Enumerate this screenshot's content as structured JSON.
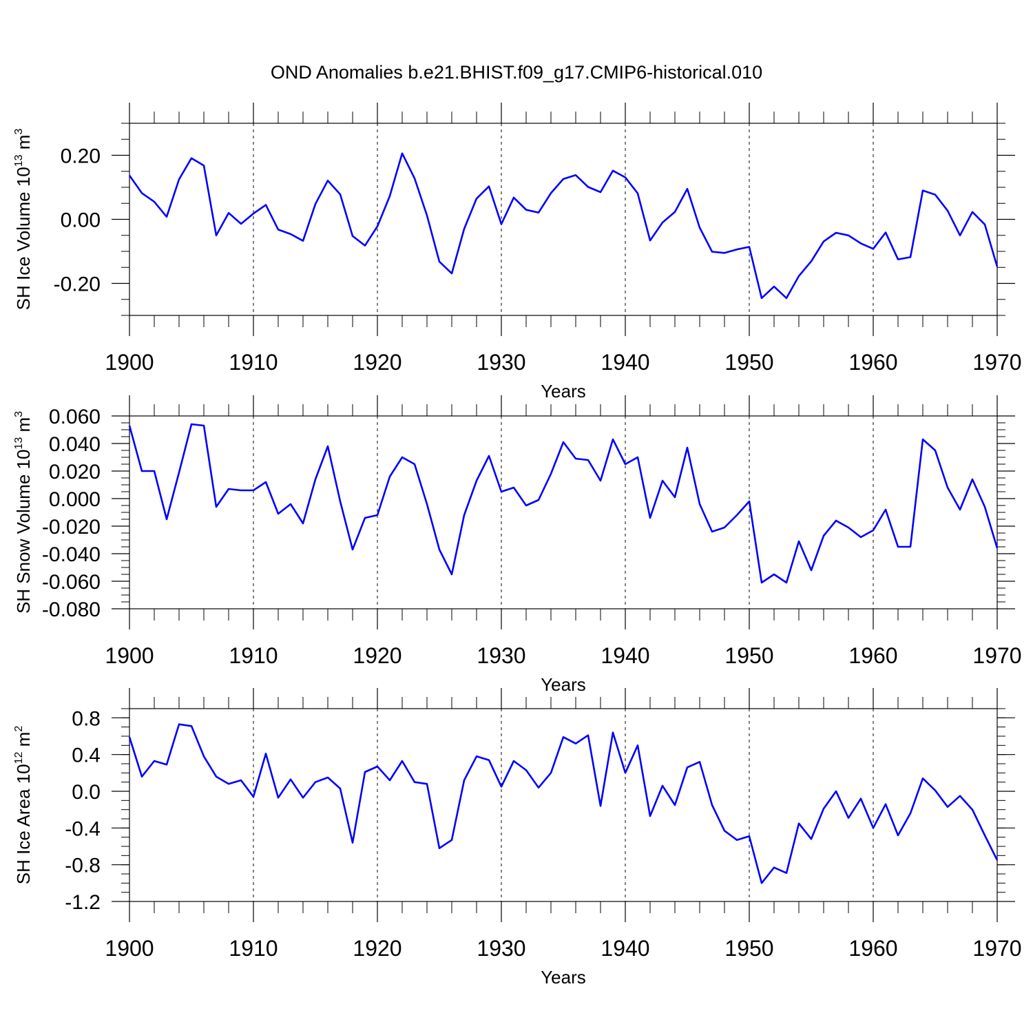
{
  "title": "OND Anomalies b.e21.BHIST.f09_g17.CMIP6-historical.010",
  "line_color": "#0000ff",
  "chart_data": [
    {
      "type": "line",
      "xlabel": "Years",
      "ylabel_main": "SH Ice Volume 10",
      "ylabel_exp": "13",
      "ylabel_unit": " m",
      "ylabel_unit_exp": "3",
      "xlim": [
        1900,
        1970
      ],
      "ylim": [
        -0.3,
        0.3
      ],
      "yticks": [
        -0.2,
        0.0,
        0.2
      ],
      "ytick_labels": [
        "-0.20",
        "0.00",
        "0.20"
      ],
      "yminor_step": 0.05,
      "xticks": [
        1900,
        1910,
        1920,
        1930,
        1940,
        1950,
        1960,
        1970
      ],
      "xtick_labels": [
        "1900",
        "1910",
        "1920",
        "1930",
        "1940",
        "1950",
        "1960",
        "1970"
      ],
      "series": [
        {
          "name": "SH Ice Volume",
          "x": [
            1900,
            1901,
            1902,
            1903,
            1904,
            1905,
            1906,
            1907,
            1908,
            1909,
            1910,
            1911,
            1912,
            1913,
            1914,
            1915,
            1916,
            1917,
            1918,
            1919,
            1920,
            1921,
            1922,
            1923,
            1924,
            1925,
            1926,
            1927,
            1928,
            1929,
            1930,
            1931,
            1932,
            1933,
            1934,
            1935,
            1936,
            1937,
            1938,
            1939,
            1940,
            1941,
            1942,
            1943,
            1944,
            1945,
            1946,
            1947,
            1948,
            1949,
            1950,
            1951,
            1952,
            1953,
            1954,
            1955,
            1956,
            1957,
            1958,
            1959,
            1960,
            1961,
            1962,
            1963,
            1964,
            1965,
            1966,
            1967,
            1968,
            1969,
            1970
          ],
          "values": [
            0.137,
            0.082,
            0.055,
            0.008,
            0.125,
            0.191,
            0.168,
            -0.05,
            0.02,
            -0.014,
            0.018,
            0.045,
            -0.032,
            -0.046,
            -0.067,
            0.048,
            0.121,
            0.078,
            -0.052,
            -0.082,
            -0.022,
            0.073,
            0.206,
            0.128,
            0.012,
            -0.132,
            -0.169,
            -0.03,
            0.065,
            0.103,
            -0.015,
            0.068,
            0.03,
            0.021,
            0.082,
            0.126,
            0.138,
            0.101,
            0.085,
            0.152,
            0.131,
            0.081,
            -0.066,
            -0.01,
            0.023,
            0.095,
            -0.026,
            -0.101,
            -0.105,
            -0.094,
            -0.086,
            -0.246,
            -0.21,
            -0.246,
            -0.177,
            -0.131,
            -0.069,
            -0.042,
            -0.05,
            -0.075,
            -0.092,
            -0.041,
            -0.125,
            -0.118,
            0.09,
            0.077,
            0.027,
            -0.05,
            0.023,
            -0.016,
            -0.148
          ]
        }
      ]
    },
    {
      "type": "line",
      "xlabel": "Years",
      "ylabel_main": "SH Snow Volume 10",
      "ylabel_exp": "13",
      "ylabel_unit": " m",
      "ylabel_unit_exp": "3",
      "xlim": [
        1900,
        1970
      ],
      "ylim": [
        -0.08,
        0.06
      ],
      "yticks": [
        -0.08,
        -0.06,
        -0.04,
        -0.02,
        0.0,
        0.02,
        0.04,
        0.06
      ],
      "ytick_labels": [
        "-0.080",
        "-0.060",
        "-0.040",
        "-0.020",
        "0.000",
        "0.020",
        "0.040",
        "0.060"
      ],
      "yminor_step": 0.005,
      "xticks": [
        1900,
        1910,
        1920,
        1930,
        1940,
        1950,
        1960,
        1970
      ],
      "xtick_labels": [
        "1900",
        "1910",
        "1920",
        "1930",
        "1940",
        "1950",
        "1960",
        "1970"
      ],
      "series": [
        {
          "name": "SH Snow Volume",
          "x": [
            1900,
            1901,
            1902,
            1903,
            1904,
            1905,
            1906,
            1907,
            1908,
            1909,
            1910,
            1911,
            1912,
            1913,
            1914,
            1915,
            1916,
            1917,
            1918,
            1919,
            1920,
            1921,
            1922,
            1923,
            1924,
            1925,
            1926,
            1927,
            1928,
            1929,
            1930,
            1931,
            1932,
            1933,
            1934,
            1935,
            1936,
            1937,
            1938,
            1939,
            1940,
            1941,
            1942,
            1943,
            1944,
            1945,
            1946,
            1947,
            1948,
            1949,
            1950,
            1951,
            1952,
            1953,
            1954,
            1955,
            1956,
            1957,
            1958,
            1959,
            1960,
            1961,
            1962,
            1963,
            1964,
            1965,
            1966,
            1967,
            1968,
            1969,
            1970
          ],
          "values": [
            0.053,
            0.02,
            0.02,
            -0.015,
            0.019,
            0.054,
            0.053,
            -0.006,
            0.007,
            0.006,
            0.006,
            0.012,
            -0.011,
            -0.004,
            -0.018,
            0.014,
            0.038,
            -0.002,
            -0.037,
            -0.014,
            -0.012,
            0.016,
            0.03,
            0.025,
            -0.004,
            -0.037,
            -0.055,
            -0.012,
            0.013,
            0.031,
            0.005,
            0.008,
            -0.005,
            -0.001,
            0.018,
            0.041,
            0.029,
            0.028,
            0.013,
            0.043,
            0.025,
            0.03,
            -0.014,
            0.013,
            0.001,
            0.037,
            -0.004,
            -0.024,
            -0.021,
            -0.012,
            -0.002,
            -0.061,
            -0.055,
            -0.061,
            -0.031,
            -0.052,
            -0.027,
            -0.016,
            -0.021,
            -0.028,
            -0.023,
            -0.008,
            -0.035,
            -0.035,
            0.043,
            0.035,
            0.008,
            -0.008,
            0.014,
            -0.006,
            -0.036
          ]
        }
      ]
    },
    {
      "type": "line",
      "xlabel": "Years",
      "ylabel_main": "SH Ice Area 10",
      "ylabel_exp": "12",
      "ylabel_unit": " m",
      "ylabel_unit_exp": "2",
      "xlim": [
        1900,
        1970
      ],
      "ylim": [
        -1.2,
        0.9
      ],
      "yticks": [
        -1.2,
        -0.8,
        -0.4,
        0.0,
        0.4,
        0.8
      ],
      "ytick_labels": [
        "-1.2",
        "-0.8",
        "-0.4",
        "0.0",
        "0.4",
        "0.8"
      ],
      "yminor_step": 0.1,
      "xticks": [
        1900,
        1910,
        1920,
        1930,
        1940,
        1950,
        1960,
        1970
      ],
      "xtick_labels": [
        "1900",
        "1910",
        "1920",
        "1930",
        "1940",
        "1950",
        "1960",
        "1970"
      ],
      "series": [
        {
          "name": "SH Ice Area",
          "x": [
            1900,
            1901,
            1902,
            1903,
            1904,
            1905,
            1906,
            1907,
            1908,
            1909,
            1910,
            1911,
            1912,
            1913,
            1914,
            1915,
            1916,
            1917,
            1918,
            1919,
            1920,
            1921,
            1922,
            1923,
            1924,
            1925,
            1926,
            1927,
            1928,
            1929,
            1930,
            1931,
            1932,
            1933,
            1934,
            1935,
            1936,
            1937,
            1938,
            1939,
            1940,
            1941,
            1942,
            1943,
            1944,
            1945,
            1946,
            1947,
            1948,
            1949,
            1950,
            1951,
            1952,
            1953,
            1954,
            1955,
            1956,
            1957,
            1958,
            1959,
            1960,
            1961,
            1962,
            1963,
            1964,
            1965,
            1966,
            1967,
            1968,
            1969,
            1970
          ],
          "values": [
            0.59,
            0.16,
            0.33,
            0.29,
            0.73,
            0.71,
            0.38,
            0.16,
            0.08,
            0.12,
            -0.06,
            0.41,
            -0.07,
            0.13,
            -0.07,
            0.1,
            0.15,
            0.03,
            -0.56,
            0.21,
            0.27,
            0.12,
            0.33,
            0.1,
            0.08,
            -0.62,
            -0.53,
            0.12,
            0.38,
            0.34,
            0.05,
            0.33,
            0.23,
            0.04,
            0.2,
            0.59,
            0.52,
            0.61,
            -0.16,
            0.64,
            0.2,
            0.5,
            -0.27,
            0.06,
            -0.15,
            0.26,
            0.32,
            -0.15,
            -0.43,
            -0.53,
            -0.49,
            -1.0,
            -0.83,
            -0.89,
            -0.35,
            -0.52,
            -0.19,
            0.0,
            -0.29,
            -0.08,
            -0.4,
            -0.14,
            -0.48,
            -0.24,
            0.14,
            0.01,
            -0.17,
            -0.05,
            -0.2,
            -0.48,
            -0.75
          ]
        }
      ]
    }
  ]
}
